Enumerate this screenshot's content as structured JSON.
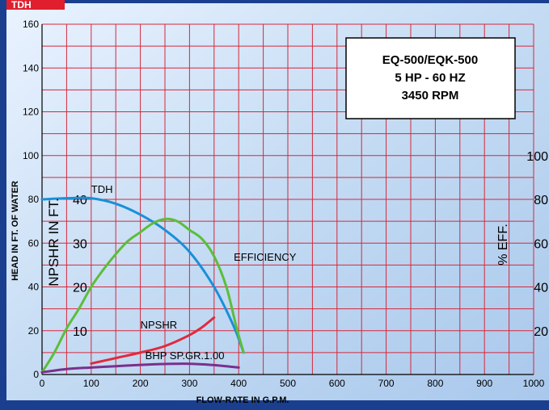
{
  "header_tab": {
    "label": "TDH"
  },
  "info_box": {
    "line1": "EQ-500/EQK-500",
    "line2": "5 HP - 60 HZ",
    "line3": "3450 RPM"
  },
  "colors": {
    "grid": "#d6283a",
    "tdh": "#1a8fd8",
    "efficiency": "#5cbd3c",
    "npshr": "#e02a3c",
    "bhp": "#7a2f8c",
    "border": "#1b3f8f",
    "header": "#e01e2e"
  },
  "chart_data": {
    "type": "line",
    "xlabel": "FLOW-RATE IN G.P.M.",
    "ylabel": "HEAD IN FT. OF WATER",
    "ylabel_npshr": "NPSHR IN FT.",
    "ylabel_right": "% EFF.",
    "xlim": [
      0,
      1000
    ],
    "ylim": [
      0,
      160
    ],
    "xticks": [
      "0",
      "100",
      "200",
      "300",
      "400",
      "500",
      "600",
      "700",
      "800",
      "900",
      "1000"
    ],
    "yticks": [
      "0",
      "20",
      "40",
      "60",
      "80",
      "100",
      "120",
      "140",
      "160"
    ],
    "npshr_ticks": [
      {
        "label": "10",
        "at": 20
      },
      {
        "label": "20",
        "at": 40
      },
      {
        "label": "30",
        "at": 60
      },
      {
        "label": "40",
        "at": 80
      }
    ],
    "eff_ticks": [
      {
        "label": "20",
        "at": 20
      },
      {
        "label": "40",
        "at": 40
      },
      {
        "label": "60",
        "at": 60
      },
      {
        "label": "80",
        "at": 80
      },
      {
        "label": "100",
        "at": 100
      }
    ],
    "grid": true,
    "series": [
      {
        "name": "TDH",
        "label": "TDH",
        "label_at": [
          100,
          83
        ],
        "color_key": "tdh",
        "points": [
          [
            0,
            80
          ],
          [
            50,
            80.5
          ],
          [
            100,
            80.5
          ],
          [
            150,
            78
          ],
          [
            200,
            73
          ],
          [
            250,
            66
          ],
          [
            300,
            56
          ],
          [
            350,
            40
          ],
          [
            390,
            22
          ],
          [
            410,
            10
          ]
        ]
      },
      {
        "name": "EFFICIENCY",
        "label": "EFFICIENCY",
        "label_at": [
          390,
          52
        ],
        "color_key": "efficiency",
        "points": [
          [
            0,
            1
          ],
          [
            25,
            10
          ],
          [
            50,
            21
          ],
          [
            75,
            30
          ],
          [
            100,
            40
          ],
          [
            125,
            48
          ],
          [
            150,
            55
          ],
          [
            175,
            61
          ],
          [
            200,
            65
          ],
          [
            225,
            69
          ],
          [
            250,
            71
          ],
          [
            275,
            70
          ],
          [
            300,
            66
          ],
          [
            325,
            62
          ],
          [
            350,
            54
          ],
          [
            375,
            40
          ],
          [
            395,
            22
          ],
          [
            410,
            10
          ]
        ]
      },
      {
        "name": "NPSHR",
        "label": "NPSHR",
        "label_at": [
          200,
          21
        ],
        "color_key": "npshr",
        "points": [
          [
            100,
            5
          ],
          [
            150,
            7.5
          ],
          [
            200,
            10
          ],
          [
            250,
            13
          ],
          [
            300,
            18
          ],
          [
            325,
            21.5
          ],
          [
            350,
            26
          ]
        ]
      },
      {
        "name": "BHP SP.GR.1.00",
        "label": "BHP SP.GR.1.00",
        "label_at": [
          210,
          7
        ],
        "color_key": "bhp",
        "points": [
          [
            0,
            1
          ],
          [
            50,
            2.5
          ],
          [
            100,
            3.2
          ],
          [
            150,
            3.8
          ],
          [
            200,
            4.4
          ],
          [
            250,
            4.8
          ],
          [
            300,
            4.9
          ],
          [
            350,
            4.3
          ],
          [
            400,
            3.2
          ]
        ]
      }
    ]
  }
}
